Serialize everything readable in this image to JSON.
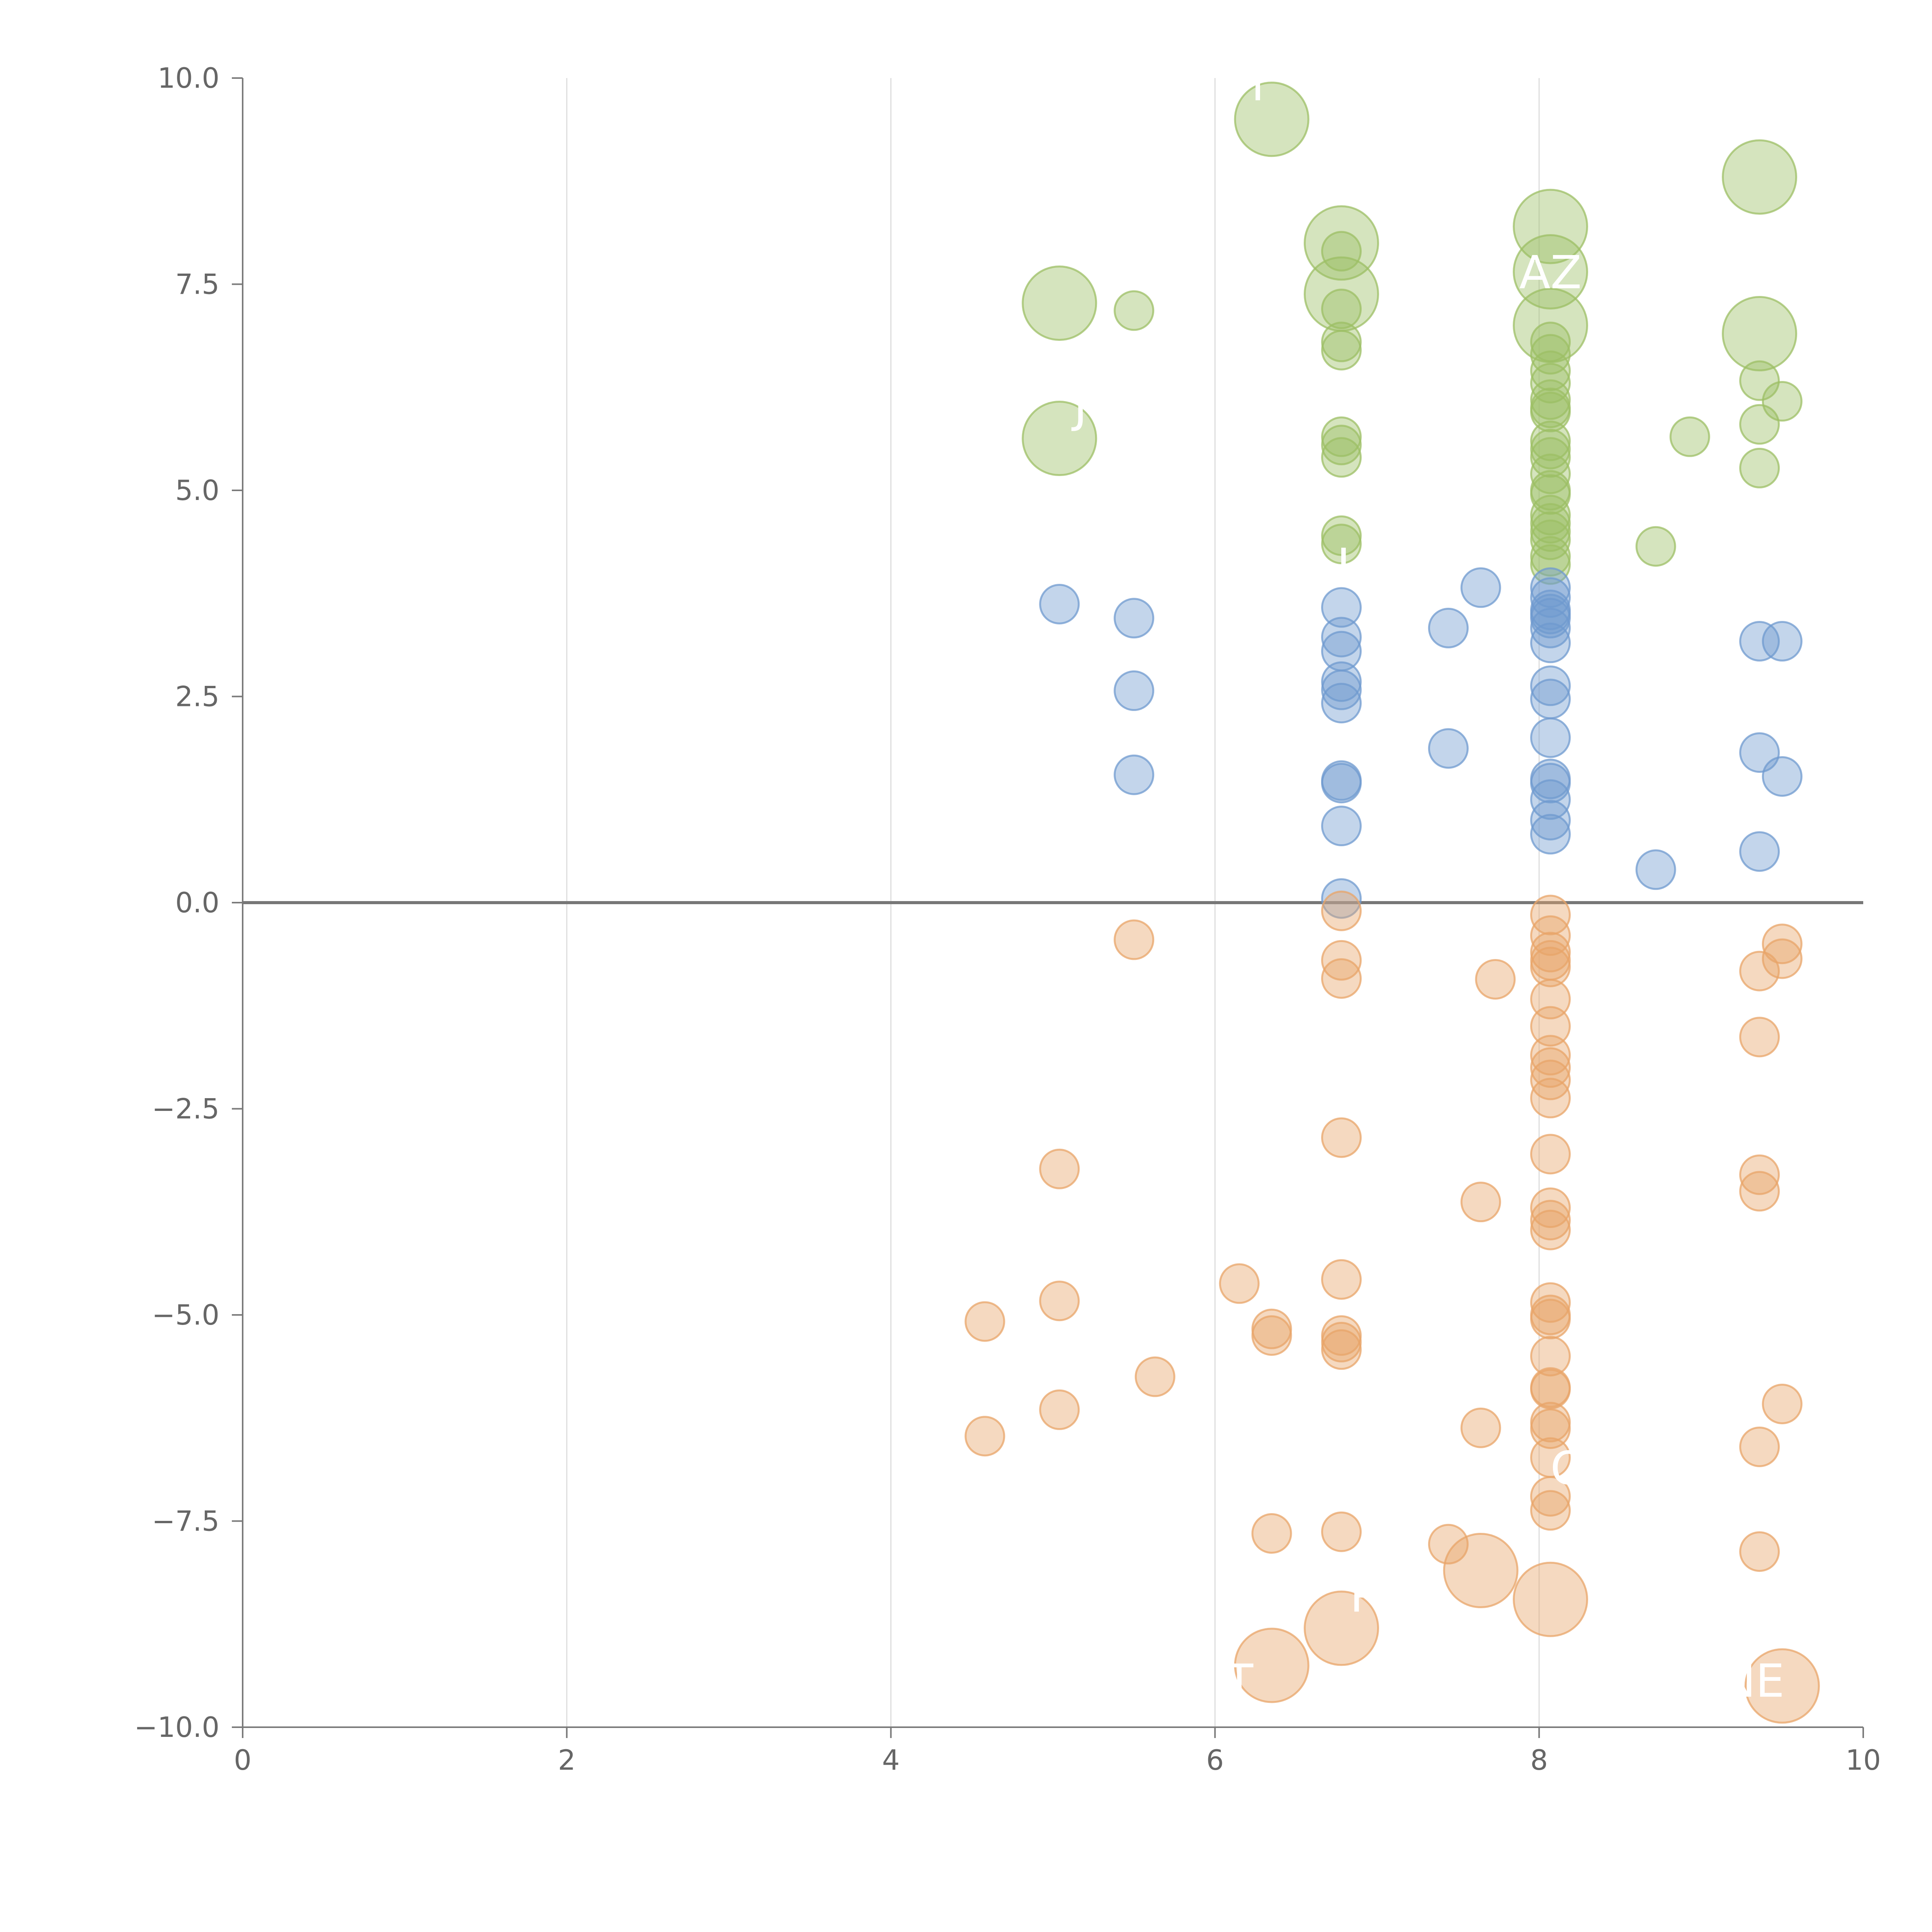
{
  "chart_data": {
    "type": "scatter",
    "title": "",
    "xlabel": "",
    "ylabel": "",
    "xlim": [
      0,
      10
    ],
    "ylim": [
      -10,
      10
    ],
    "x_ticks": [
      "0",
      "2",
      "4",
      "6",
      "8",
      "10"
    ],
    "y_ticks": [
      "10.0",
      "7.5",
      "5.0",
      "2.5",
      "0.0",
      "−2.5",
      "−5.0",
      "−7.5",
      "−10.0"
    ],
    "x_tick_values": [
      0,
      2,
      4,
      6,
      8,
      10
    ],
    "y_tick_values": [
      10,
      7.5,
      5,
      2.5,
      0,
      -2.5,
      -5,
      -7.5,
      -10
    ],
    "grid": "vertical lines at x ticks",
    "reference_line_y": 0,
    "colors": {
      "positive_high": "#9cbf64",
      "positive_low": "#6f9acf",
      "negative": "#e8a468",
      "axis": "#666666",
      "grid": "#dddddd",
      "label": "#ffffff"
    },
    "series": [
      {
        "color_key": "positive_high",
        "points": [
          {
            "x": 6.35,
            "y": 9.5,
            "size": "large"
          },
          {
            "x": 6.78,
            "y": 8.0,
            "size": "large"
          },
          {
            "x": 6.78,
            "y": 7.38,
            "size": "large"
          },
          {
            "x": 8.07,
            "y": 8.2,
            "size": "large"
          },
          {
            "x": 8.07,
            "y": 7.65,
            "size": "large"
          },
          {
            "x": 8.07,
            "y": 7.0,
            "size": "large"
          },
          {
            "x": 9.36,
            "y": 8.8,
            "size": "large"
          },
          {
            "x": 9.36,
            "y": 6.9,
            "size": "large"
          },
          {
            "x": 5.04,
            "y": 7.27,
            "size": "large"
          },
          {
            "x": 5.04,
            "y": 5.63,
            "size": "large"
          },
          {
            "x": 5.5,
            "y": 7.18,
            "size": "small"
          },
          {
            "x": 6.78,
            "y": 7.9,
            "size": "small"
          },
          {
            "x": 6.78,
            "y": 7.2,
            "size": "small"
          },
          {
            "x": 6.78,
            "y": 6.8,
            "size": "small"
          },
          {
            "x": 6.78,
            "y": 6.7,
            "size": "small"
          },
          {
            "x": 6.78,
            "y": 5.65,
            "size": "small"
          },
          {
            "x": 6.78,
            "y": 5.55,
            "size": "small"
          },
          {
            "x": 6.78,
            "y": 5.4,
            "size": "small"
          },
          {
            "x": 6.78,
            "y": 4.45,
            "size": "small"
          },
          {
            "x": 6.78,
            "y": 4.35,
            "size": "small"
          },
          {
            "x": 8.07,
            "y": 6.8,
            "size": "small"
          },
          {
            "x": 8.07,
            "y": 6.65,
            "size": "small"
          },
          {
            "x": 8.07,
            "y": 6.45,
            "size": "small"
          },
          {
            "x": 8.07,
            "y": 6.3,
            "size": "small"
          },
          {
            "x": 8.07,
            "y": 6.1,
            "size": "small"
          },
          {
            "x": 8.07,
            "y": 6.0,
            "size": "small"
          },
          {
            "x": 8.07,
            "y": 5.95,
            "size": "small"
          },
          {
            "x": 8.07,
            "y": 5.6,
            "size": "small"
          },
          {
            "x": 8.07,
            "y": 5.5,
            "size": "small"
          },
          {
            "x": 8.07,
            "y": 5.4,
            "size": "small"
          },
          {
            "x": 8.07,
            "y": 5.2,
            "size": "small"
          },
          {
            "x": 8.07,
            "y": 5.0,
            "size": "small"
          },
          {
            "x": 8.07,
            "y": 4.95,
            "size": "small"
          },
          {
            "x": 8.07,
            "y": 4.7,
            "size": "small"
          },
          {
            "x": 8.07,
            "y": 4.6,
            "size": "small"
          },
          {
            "x": 8.07,
            "y": 4.5,
            "size": "small"
          },
          {
            "x": 8.07,
            "y": 4.4,
            "size": "small"
          },
          {
            "x": 8.07,
            "y": 4.2,
            "size": "small"
          },
          {
            "x": 8.07,
            "y": 4.1,
            "size": "small"
          },
          {
            "x": 8.93,
            "y": 5.65,
            "size": "small"
          },
          {
            "x": 8.72,
            "y": 4.32,
            "size": "small"
          },
          {
            "x": 9.36,
            "y": 6.33,
            "size": "small"
          },
          {
            "x": 9.5,
            "y": 6.08,
            "size": "small"
          },
          {
            "x": 9.36,
            "y": 5.8,
            "size": "small"
          },
          {
            "x": 9.36,
            "y": 5.27,
            "size": "small"
          }
        ]
      },
      {
        "color_key": "positive_low",
        "points": [
          {
            "x": 5.04,
            "y": 3.62,
            "size": "small"
          },
          {
            "x": 5.5,
            "y": 3.45,
            "size": "small"
          },
          {
            "x": 5.5,
            "y": 2.57,
            "size": "small"
          },
          {
            "x": 5.5,
            "y": 1.55,
            "size": "small"
          },
          {
            "x": 6.78,
            "y": 3.58,
            "size": "small"
          },
          {
            "x": 6.78,
            "y": 3.22,
            "size": "small"
          },
          {
            "x": 6.78,
            "y": 3.05,
            "size": "small"
          },
          {
            "x": 6.78,
            "y": 2.68,
            "size": "small"
          },
          {
            "x": 6.78,
            "y": 2.58,
            "size": "small"
          },
          {
            "x": 6.78,
            "y": 2.42,
            "size": "small"
          },
          {
            "x": 6.78,
            "y": 1.48,
            "size": "small"
          },
          {
            "x": 6.78,
            "y": 1.45,
            "size": "small"
          },
          {
            "x": 6.78,
            "y": 0.93,
            "size": "small"
          },
          {
            "x": 6.78,
            "y": 0.05,
            "size": "small"
          },
          {
            "x": 7.44,
            "y": 3.33,
            "size": "small"
          },
          {
            "x": 7.44,
            "y": 1.87,
            "size": "small"
          },
          {
            "x": 7.64,
            "y": 3.82,
            "size": "small"
          },
          {
            "x": 8.07,
            "y": 3.82,
            "size": "small"
          },
          {
            "x": 8.07,
            "y": 3.7,
            "size": "small"
          },
          {
            "x": 8.07,
            "y": 3.55,
            "size": "small"
          },
          {
            "x": 8.07,
            "y": 3.5,
            "size": "small"
          },
          {
            "x": 8.07,
            "y": 3.45,
            "size": "small"
          },
          {
            "x": 8.07,
            "y": 3.33,
            "size": "small"
          },
          {
            "x": 8.07,
            "y": 3.15,
            "size": "small"
          },
          {
            "x": 8.07,
            "y": 2.63,
            "size": "small"
          },
          {
            "x": 8.07,
            "y": 2.47,
            "size": "small"
          },
          {
            "x": 8.07,
            "y": 2.0,
            "size": "small"
          },
          {
            "x": 8.07,
            "y": 1.5,
            "size": "small"
          },
          {
            "x": 8.07,
            "y": 1.45,
            "size": "small"
          },
          {
            "x": 8.07,
            "y": 1.25,
            "size": "small"
          },
          {
            "x": 8.07,
            "y": 1.0,
            "size": "small"
          },
          {
            "x": 8.07,
            "y": 0.83,
            "size": "small"
          },
          {
            "x": 8.72,
            "y": 0.4,
            "size": "small"
          },
          {
            "x": 9.36,
            "y": 3.17,
            "size": "small"
          },
          {
            "x": 9.5,
            "y": 3.17,
            "size": "small"
          },
          {
            "x": 9.36,
            "y": 1.82,
            "size": "small"
          },
          {
            "x": 9.5,
            "y": 1.53,
            "size": "small"
          },
          {
            "x": 9.36,
            "y": 0.62,
            "size": "small"
          }
        ]
      },
      {
        "color_key": "negative",
        "points": [
          {
            "x": 5.5,
            "y": -0.45,
            "size": "small"
          },
          {
            "x": 6.78,
            "y": -0.1,
            "size": "small"
          },
          {
            "x": 6.78,
            "y": -0.7,
            "size": "small"
          },
          {
            "x": 6.78,
            "y": -0.92,
            "size": "small"
          },
          {
            "x": 6.78,
            "y": -2.85,
            "size": "small"
          },
          {
            "x": 6.78,
            "y": -4.57,
            "size": "small"
          },
          {
            "x": 6.78,
            "y": -5.25,
            "size": "small"
          },
          {
            "x": 6.78,
            "y": -5.33,
            "size": "small"
          },
          {
            "x": 6.78,
            "y": -5.42,
            "size": "small"
          },
          {
            "x": 6.78,
            "y": -7.63,
            "size": "small"
          },
          {
            "x": 6.78,
            "y": -8.8,
            "size": "large"
          },
          {
            "x": 7.73,
            "y": -0.93,
            "size": "small"
          },
          {
            "x": 7.64,
            "y": -3.63,
            "size": "small"
          },
          {
            "x": 7.64,
            "y": -6.37,
            "size": "small"
          },
          {
            "x": 7.44,
            "y": -7.78,
            "size": "small"
          },
          {
            "x": 7.64,
            "y": -8.1,
            "size": "large"
          },
          {
            "x": 8.07,
            "y": -0.15,
            "size": "small"
          },
          {
            "x": 8.07,
            "y": -0.4,
            "size": "small"
          },
          {
            "x": 8.07,
            "y": -0.6,
            "size": "small"
          },
          {
            "x": 8.07,
            "y": -0.7,
            "size": "small"
          },
          {
            "x": 8.07,
            "y": -0.78,
            "size": "small"
          },
          {
            "x": 8.07,
            "y": -1.17,
            "size": "small"
          },
          {
            "x": 8.07,
            "y": -1.5,
            "size": "small"
          },
          {
            "x": 8.07,
            "y": -1.85,
            "size": "small"
          },
          {
            "x": 8.07,
            "y": -2.0,
            "size": "small"
          },
          {
            "x": 8.07,
            "y": -2.15,
            "size": "small"
          },
          {
            "x": 8.07,
            "y": -2.37,
            "size": "small"
          },
          {
            "x": 8.07,
            "y": -3.05,
            "size": "small"
          },
          {
            "x": 8.07,
            "y": -3.7,
            "size": "small"
          },
          {
            "x": 8.07,
            "y": -3.85,
            "size": "small"
          },
          {
            "x": 8.07,
            "y": -3.97,
            "size": "small"
          },
          {
            "x": 8.07,
            "y": -4.85,
            "size": "small"
          },
          {
            "x": 8.07,
            "y": -5.0,
            "size": "small"
          },
          {
            "x": 8.07,
            "y": -5.05,
            "size": "small"
          },
          {
            "x": 8.07,
            "y": -5.5,
            "size": "small"
          },
          {
            "x": 8.07,
            "y": -5.88,
            "size": "small"
          },
          {
            "x": 8.07,
            "y": -5.9,
            "size": "small"
          },
          {
            "x": 8.07,
            "y": -6.3,
            "size": "small"
          },
          {
            "x": 8.07,
            "y": -6.38,
            "size": "small"
          },
          {
            "x": 8.07,
            "y": -6.73,
            "size": "small"
          },
          {
            "x": 8.07,
            "y": -7.2,
            "size": "small"
          },
          {
            "x": 8.07,
            "y": -7.37,
            "size": "small"
          },
          {
            "x": 8.07,
            "y": -8.45,
            "size": "large"
          },
          {
            "x": 6.15,
            "y": -4.62,
            "size": "small"
          },
          {
            "x": 6.35,
            "y": -5.17,
            "size": "small"
          },
          {
            "x": 6.35,
            "y": -5.25,
            "size": "small"
          },
          {
            "x": 6.35,
            "y": -7.65,
            "size": "small"
          },
          {
            "x": 6.35,
            "y": -9.25,
            "size": "large"
          },
          {
            "x": 5.63,
            "y": -5.75,
            "size": "small"
          },
          {
            "x": 5.04,
            "y": -3.23,
            "size": "small"
          },
          {
            "x": 5.04,
            "y": -4.83,
            "size": "small"
          },
          {
            "x": 5.04,
            "y": -6.15,
            "size": "small"
          },
          {
            "x": 4.58,
            "y": -5.08,
            "size": "small"
          },
          {
            "x": 4.58,
            "y": -6.47,
            "size": "small"
          },
          {
            "x": 9.5,
            "y": -0.5,
            "size": "small"
          },
          {
            "x": 9.5,
            "y": -0.68,
            "size": "small"
          },
          {
            "x": 9.36,
            "y": -0.83,
            "size": "small"
          },
          {
            "x": 9.36,
            "y": -1.63,
            "size": "small"
          },
          {
            "x": 9.36,
            "y": -3.3,
            "size": "small"
          },
          {
            "x": 9.36,
            "y": -3.5,
            "size": "small"
          },
          {
            "x": 9.5,
            "y": -6.08,
            "size": "small"
          },
          {
            "x": 9.36,
            "y": -6.6,
            "size": "small"
          },
          {
            "x": 9.36,
            "y": -7.87,
            "size": "small"
          },
          {
            "x": 9.5,
            "y": -9.5,
            "size": "large"
          }
        ]
      }
    ],
    "labels": [
      {
        "text": "H",
        "x": 6.2,
        "y": 9.73
      },
      {
        "text": "AZ",
        "x": 8.07,
        "y": 7.45
      },
      {
        "text": "J",
        "x": 5.17,
        "y": 5.83
      },
      {
        "text": "L",
        "x": 6.83,
        "y": 3.9
      },
      {
        "text": "Q",
        "x": 8.18,
        "y": -7.05
      },
      {
        "text": "R",
        "x": 6.93,
        "y": -8.6
      },
      {
        "text": "T",
        "x": 6.15,
        "y": -9.63
      },
      {
        "text": "NE",
        "x": 9.32,
        "y": -9.63
      }
    ]
  }
}
